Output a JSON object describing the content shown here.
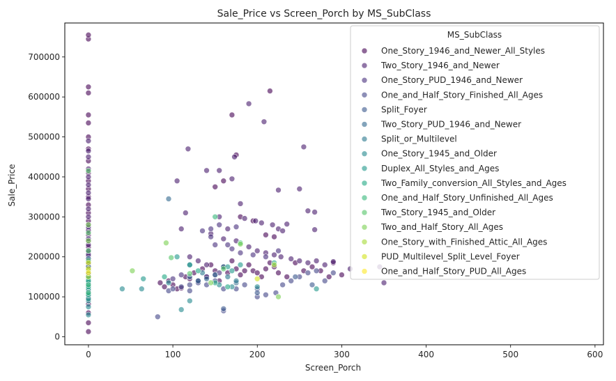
{
  "chart_data": {
    "type": "scatter",
    "title": "Sale_Price vs Screen_Porch by MS_SubClass",
    "xlabel": "Screen_Porch",
    "ylabel": "Sale_Price",
    "xlim": [
      -28,
      610
    ],
    "ylim": [
      -20000,
      785000
    ],
    "xticks": [
      0,
      100,
      200,
      300,
      400,
      500,
      600
    ],
    "yticks": [
      0,
      100000,
      200000,
      300000,
      400000,
      500000,
      600000,
      700000
    ],
    "grid": false,
    "legend": {
      "title": "MS_SubClass",
      "placement": "top-right"
    },
    "series": [
      {
        "name": "One_Story_1946_and_Newer_All_Styles",
        "color": "#440154",
        "points": [
          [
            0,
            13000
          ],
          [
            0,
            35000
          ],
          [
            0,
            60000
          ],
          [
            0,
            82000
          ],
          [
            0,
            95000
          ],
          [
            0,
            105000
          ],
          [
            0,
            115000
          ],
          [
            0,
            125000
          ],
          [
            0,
            135000
          ],
          [
            0,
            140000
          ],
          [
            0,
            150000
          ],
          [
            0,
            160000
          ],
          [
            0,
            170000
          ],
          [
            0,
            180000
          ],
          [
            0,
            190000
          ],
          [
            0,
            200000
          ],
          [
            0,
            210000
          ],
          [
            0,
            225000
          ],
          [
            0,
            240000
          ],
          [
            0,
            255000
          ],
          [
            0,
            270000
          ],
          [
            0,
            290000
          ],
          [
            0,
            310000
          ],
          [
            0,
            330000
          ],
          [
            0,
            350000
          ],
          [
            0,
            370000
          ],
          [
            0,
            390000
          ],
          [
            0,
            410000
          ],
          [
            0,
            440000
          ],
          [
            0,
            470000
          ],
          [
            0,
            500000
          ],
          [
            0,
            535000
          ],
          [
            0,
            555000
          ],
          [
            0,
            610000
          ],
          [
            0,
            625000
          ],
          [
            0,
            745000
          ],
          [
            0,
            755000
          ],
          [
            85,
            135000
          ],
          [
            90,
            125000
          ],
          [
            95,
            140000
          ],
          [
            100,
            130000
          ],
          [
            105,
            120000
          ],
          [
            110,
            122000
          ],
          [
            115,
            150000
          ],
          [
            120,
            145000
          ],
          [
            125,
            160000
          ],
          [
            130,
            138000
          ],
          [
            135,
            170000
          ],
          [
            140,
            150000
          ],
          [
            145,
            180000
          ],
          [
            150,
            165000
          ],
          [
            155,
            140000
          ],
          [
            160,
            175000
          ],
          [
            165,
            160000
          ],
          [
            170,
            190000
          ],
          [
            175,
            170000
          ],
          [
            180,
            155000
          ],
          [
            185,
            165000
          ],
          [
            190,
            180000
          ],
          [
            195,
            165000
          ],
          [
            200,
            160000
          ],
          [
            205,
            150000
          ],
          [
            210,
            170000
          ],
          [
            215,
            185000
          ],
          [
            220,
            175000
          ],
          [
            225,
            160000
          ],
          [
            235,
            150000
          ],
          [
            245,
            185000
          ],
          [
            255,
            165000
          ],
          [
            265,
            175000
          ],
          [
            275,
            165000
          ],
          [
            285,
            150000
          ],
          [
            290,
            185000
          ],
          [
            180,
            300000
          ],
          [
            195,
            290000
          ],
          [
            210,
            255000
          ],
          [
            220,
            250000
          ],
          [
            160,
            390000
          ],
          [
            150,
            375000
          ],
          [
            170,
            555000
          ],
          [
            215,
            615000
          ],
          [
            175,
            455000
          ],
          [
            300,
            155000
          ]
        ]
      },
      {
        "name": "Two_Story_1946_and_Newer",
        "color": "#481a6c",
        "points": [
          [
            0,
            230000
          ],
          [
            0,
            265000
          ],
          [
            0,
            280000
          ],
          [
            0,
            300000
          ],
          [
            0,
            320000
          ],
          [
            0,
            345000
          ],
          [
            0,
            360000
          ],
          [
            0,
            380000
          ],
          [
            0,
            400000
          ],
          [
            0,
            420000
          ],
          [
            0,
            450000
          ],
          [
            0,
            465000
          ],
          [
            0,
            490000
          ],
          [
            190,
            583000
          ],
          [
            208,
            538000
          ],
          [
            140,
            416000
          ],
          [
            155,
            416000
          ],
          [
            173,
            450000
          ],
          [
            255,
            475000
          ],
          [
            170,
            395000
          ],
          [
            225,
            367000
          ],
          [
            250,
            370000
          ],
          [
            260,
            315000
          ],
          [
            268,
            312000
          ],
          [
            268,
            268000
          ],
          [
            235,
            282000
          ],
          [
            145,
            258000
          ],
          [
            180,
            333000
          ],
          [
            185,
            296000
          ],
          [
            198,
            290000
          ],
          [
            205,
            285000
          ],
          [
            218,
            280000
          ],
          [
            225,
            270000
          ],
          [
            230,
            265000
          ],
          [
            165,
            270000
          ],
          [
            155,
            300000
          ],
          [
            160,
            245000
          ],
          [
            175,
            240000
          ],
          [
            190,
            225000
          ],
          [
            200,
            215000
          ],
          [
            210,
            210000
          ],
          [
            220,
            205000
          ],
          [
            228,
            200000
          ],
          [
            240,
            195000
          ],
          [
            250,
            190000
          ],
          [
            260,
            185000
          ],
          [
            270,
            190000
          ],
          [
            280,
            180000
          ],
          [
            290,
            188000
          ],
          [
            310,
            170000
          ],
          [
            345,
            175000
          ],
          [
            350,
            135000
          ],
          [
            140,
            180000
          ],
          [
            130,
            190000
          ],
          [
            120,
            200000
          ],
          [
            118,
            470000
          ],
          [
            105,
            390000
          ],
          [
            115,
            310000
          ],
          [
            110,
            270000
          ]
        ]
      },
      {
        "name": "One_Story_PUD_1946_and_Newer",
        "color": "#472f7d",
        "points": [
          [
            0,
            175000
          ],
          [
            0,
            185000
          ],
          [
            0,
            195000
          ],
          [
            0,
            205000
          ],
          [
            0,
            215000
          ],
          [
            0,
            245000
          ],
          [
            0,
            275000
          ],
          [
            130,
            140000
          ],
          [
            140,
            150000
          ],
          [
            150,
            155000
          ],
          [
            155,
            160000
          ],
          [
            165,
            230000
          ],
          [
            170,
            220000
          ],
          [
            180,
            210000
          ],
          [
            195,
            205000
          ],
          [
            210,
            200000
          ],
          [
            225,
            215000
          ],
          [
            150,
            230000
          ],
          [
            145,
            250000
          ],
          [
            135,
            265000
          ],
          [
            145,
            270000
          ],
          [
            175,
            275000
          ],
          [
            155,
            280000
          ],
          [
            100,
            145000
          ],
          [
            110,
            155000
          ]
        ]
      },
      {
        "name": "One_and_Half_Story_Finished_All_Ages",
        "color": "#414487",
        "points": [
          [
            0,
            100000
          ],
          [
            0,
            110000
          ],
          [
            0,
            120000
          ],
          [
            0,
            130000
          ],
          [
            0,
            145000
          ],
          [
            82,
            50000
          ],
          [
            95,
            115000
          ],
          [
            100,
            120000
          ],
          [
            110,
            125000
          ],
          [
            120,
            115000
          ],
          [
            130,
            135000
          ],
          [
            140,
            130000
          ],
          [
            160,
            120000
          ],
          [
            175,
            120000
          ],
          [
            185,
            130000
          ],
          [
            200,
            100000
          ],
          [
            210,
            105000
          ],
          [
            222,
            110000
          ],
          [
            230,
            130000
          ],
          [
            240,
            140000
          ],
          [
            250,
            150000
          ],
          [
            260,
            160000
          ],
          [
            270,
            165000
          ],
          [
            280,
            140000
          ],
          [
            290,
            160000
          ],
          [
            200,
            120000
          ],
          [
            160,
            65000
          ],
          [
            120,
            130000
          ],
          [
            150,
            140000
          ]
        ]
      },
      {
        "name": "Split_Foyer",
        "color": "#39568c",
        "points": [
          [
            0,
            135000
          ],
          [
            0,
            155000
          ],
          [
            0,
            165000
          ],
          [
            160,
            70000
          ],
          [
            200,
            110000
          ],
          [
            245,
            150000
          ],
          [
            265,
            130000
          ]
        ]
      },
      {
        "name": "Two_Story_PUD_1946_and_Newer",
        "color": "#31688e",
        "points": [
          [
            0,
            140000
          ],
          [
            0,
            150000
          ],
          [
            0,
            160000
          ],
          [
            95,
            345000
          ],
          [
            120,
            150000
          ],
          [
            130,
            140000
          ],
          [
            140,
            145000
          ],
          [
            150,
            155000
          ],
          [
            175,
            135000
          ]
        ]
      },
      {
        "name": "Split_or_Multilevel",
        "color": "#2a788e",
        "points": [
          [
            0,
            125000
          ],
          [
            0,
            150000
          ],
          [
            0,
            175000
          ],
          [
            0,
            195000
          ],
          [
            160,
            175000
          ],
          [
            165,
            150000
          ],
          [
            175,
            140000
          ],
          [
            120,
            180000
          ],
          [
            135,
            160000
          ]
        ]
      },
      {
        "name": "One_Story_1945_and_Older",
        "color": "#23888e",
        "points": [
          [
            0,
            55000
          ],
          [
            0,
            75000
          ],
          [
            0,
            90000
          ],
          [
            0,
            105000
          ],
          [
            0,
            115000
          ],
          [
            40,
            120000
          ],
          [
            63,
            120000
          ],
          [
            95,
            135000
          ],
          [
            110,
            68000
          ],
          [
            120,
            90000
          ],
          [
            155,
            130000
          ],
          [
            170,
            125000
          ],
          [
            200,
            125000
          ]
        ]
      },
      {
        "name": "Duplex_All_Styles_and_Ages",
        "color": "#1f988b",
        "points": [
          [
            0,
            95000
          ],
          [
            0,
            120000
          ],
          [
            0,
            135000
          ],
          [
            0,
            145000
          ],
          [
            65,
            145000
          ],
          [
            105,
            200000
          ],
          [
            120,
            180000
          ],
          [
            165,
            175000
          ],
          [
            170,
            165000
          ],
          [
            180,
            180000
          ],
          [
            270,
            120000
          ]
        ]
      },
      {
        "name": "Two_Family_conversion_All_Styles_and_Ages",
        "color": "#22a884",
        "points": [
          [
            0,
            105000
          ],
          [
            0,
            125000
          ],
          [
            0,
            140000
          ],
          [
            90,
            150000
          ],
          [
            130,
            165000
          ],
          [
            150,
            135000
          ],
          [
            165,
            125000
          ],
          [
            220,
            185000
          ]
        ]
      },
      {
        "name": "One_and_Half_Story_Unfinished_All_Ages",
        "color": "#35b779",
        "points": [
          [
            0,
            110000
          ],
          [
            0,
            130000
          ],
          [
            150,
            300000
          ],
          [
            180,
            235000
          ]
        ]
      },
      {
        "name": "Two_Story_1945_and_Older",
        "color": "#54c568",
        "points": [
          [
            0,
            190000
          ],
          [
            0,
            215000
          ],
          [
            0,
            260000
          ],
          [
            0,
            415000
          ],
          [
            98,
            198000
          ],
          [
            120,
            158000
          ],
          [
            160,
            170000
          ]
        ]
      },
      {
        "name": "Two_and_Half_Story_All_Ages",
        "color": "#7ad151",
        "points": [
          [
            0,
            240000
          ],
          [
            0,
            280000
          ],
          [
            52,
            165000
          ],
          [
            92,
            235000
          ],
          [
            145,
            135000
          ],
          [
            180,
            232000
          ],
          [
            225,
            100000
          ]
        ]
      },
      {
        "name": "One_Story_with_Finished_Attic_All_Ages",
        "color": "#a5db36",
        "points": [
          [
            0,
            150000
          ],
          [
            0,
            165000
          ],
          [
            220,
            180000
          ]
        ]
      },
      {
        "name": "PUD_Multilevel_Split_Level_Foyer",
        "color": "#d2e21b",
        "points": [
          [
            0,
            170000
          ],
          [
            0,
            185000
          ],
          [
            200,
            145000
          ]
        ]
      },
      {
        "name": "One_and_Half_Story_PUD_All_Ages",
        "color": "#fde725",
        "points": [
          [
            0,
            160000
          ]
        ]
      }
    ]
  }
}
